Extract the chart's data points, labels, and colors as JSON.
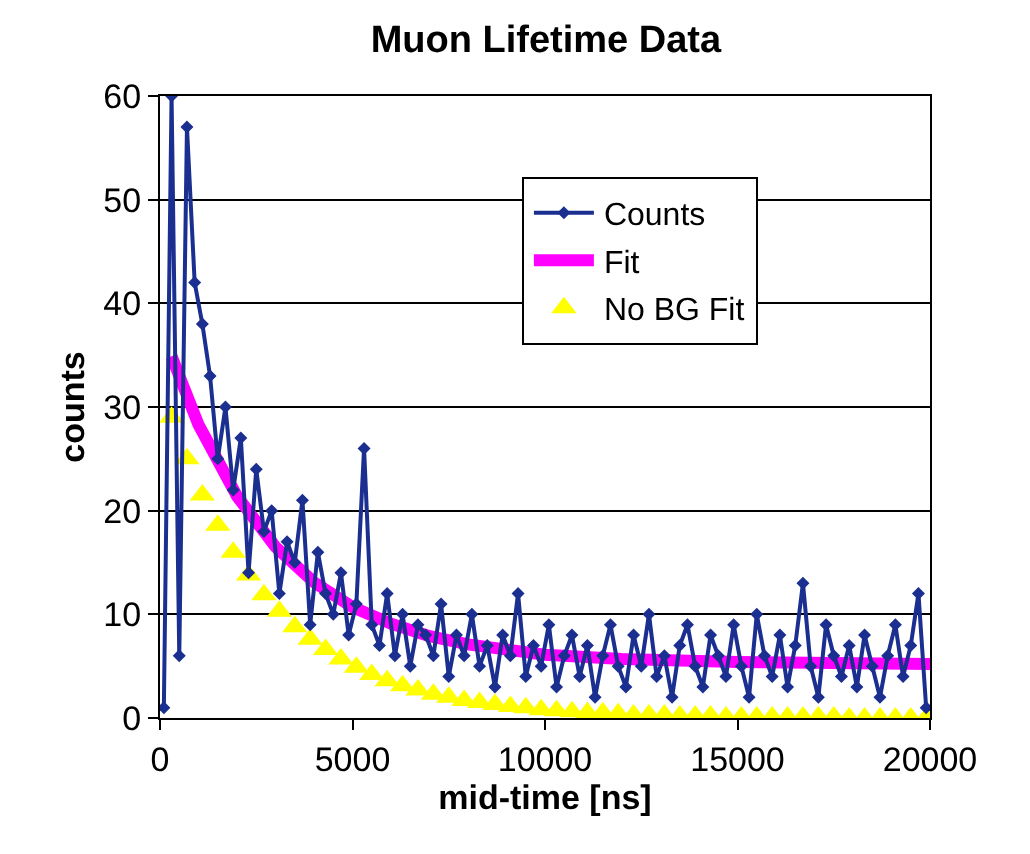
{
  "chart_data": {
    "type": "line",
    "title": "Muon Lifetime Data",
    "xlabel": "mid-time [ns]",
    "ylabel": "counts",
    "xlim": [
      0,
      20000
    ],
    "xticks": [
      0,
      5000,
      10000,
      15000,
      20000
    ],
    "ylim": [
      0,
      60
    ],
    "yticks": [
      0,
      10,
      20,
      30,
      40,
      50,
      60
    ],
    "grid": "y",
    "legend": "top right",
    "series": [
      {
        "name": "Counts",
        "color": "#1a2f8f",
        "marker": "diamond",
        "x": [
          100,
          300,
          500,
          700,
          900,
          1100,
          1300,
          1500,
          1700,
          1900,
          2100,
          2300,
          2500,
          2700,
          2900,
          3100,
          3300,
          3500,
          3700,
          3900,
          4100,
          4300,
          4500,
          4700,
          4900,
          5100,
          5300,
          5500,
          5700,
          5900,
          6100,
          6300,
          6500,
          6700,
          6900,
          7100,
          7300,
          7500,
          7700,
          7900,
          8100,
          8300,
          8500,
          8700,
          8900,
          9100,
          9300,
          9500,
          9700,
          9900,
          10100,
          10300,
          10500,
          10700,
          10900,
          11100,
          11300,
          11500,
          11700,
          11900,
          12100,
          12300,
          12500,
          12700,
          12900,
          13100,
          13300,
          13500,
          13700,
          13900,
          14100,
          14300,
          14500,
          14700,
          14900,
          15100,
          15300,
          15500,
          15700,
          15900,
          16100,
          16300,
          16500,
          16700,
          16900,
          17100,
          17300,
          17500,
          17700,
          17900,
          18100,
          18300,
          18500,
          18700,
          18900,
          19100,
          19300,
          19500,
          19700,
          19900
        ],
        "values": [
          1,
          60,
          6,
          57,
          42,
          38,
          33,
          25,
          30,
          22,
          27,
          14,
          24,
          18,
          20,
          12,
          17,
          15,
          21,
          9,
          16,
          12,
          10,
          14,
          8,
          11,
          26,
          9,
          7,
          12,
          6,
          10,
          5,
          9,
          8,
          6,
          11,
          4,
          8,
          6,
          10,
          5,
          7,
          3,
          8,
          6,
          12,
          4,
          7,
          5,
          9,
          3,
          6,
          8,
          4,
          7,
          2,
          6,
          9,
          5,
          3,
          8,
          5,
          10,
          4,
          6,
          2,
          7,
          9,
          5,
          3,
          8,
          6,
          4,
          9,
          5,
          2,
          10,
          6,
          4,
          8,
          3,
          7,
          13,
          5,
          2,
          9,
          6,
          4,
          7,
          3,
          8,
          5,
          2,
          6,
          9,
          4,
          7,
          12,
          1
        ]
      },
      {
        "name": "Fit",
        "color": "#ff00ff",
        "marker": "none",
        "x": [
          300,
          1000,
          2000,
          3000,
          4000,
          5000,
          6000,
          7000,
          8000,
          10000,
          12000,
          15000,
          20000
        ],
        "values": [
          34.9,
          28.3,
          21.4,
          16.5,
          13.1,
          10.7,
          9.1,
          7.9,
          7.1,
          6.1,
          5.7,
          5.4,
          5.2
        ]
      },
      {
        "name": "No BG Fit",
        "type": "scatter",
        "color": "#ffff00",
        "marker": "triangle",
        "x": [
          300,
          700,
          1100,
          1500,
          1900,
          2300,
          2700,
          3100,
          3500,
          3900,
          4300,
          4700,
          5100,
          5500,
          5900,
          6300,
          6700,
          7100,
          7500,
          7900,
          8300,
          8700,
          9100,
          9500,
          9900,
          10300,
          10700,
          11100,
          11500,
          11900,
          12300,
          12700,
          13100,
          13500,
          13900,
          14300,
          14700,
          15100,
          15500,
          15900,
          16300,
          16700,
          17100,
          17500,
          17900,
          18300,
          18700,
          19100,
          19500,
          19900
        ],
        "values": [
          29,
          25.0,
          21.5,
          18.6,
          16.0,
          13.8,
          11.9,
          10.3,
          8.8,
          7.6,
          6.6,
          5.7,
          4.9,
          4.2,
          3.6,
          3.1,
          2.7,
          2.3,
          2.0,
          1.7,
          1.5,
          1.3,
          1.1,
          1.0,
          0.8,
          0.7,
          0.6,
          0.5,
          0.5,
          0.4,
          0.3,
          0.3,
          0.3,
          0.2,
          0.2,
          0.2,
          0.1,
          0.1,
          0.1,
          0.1,
          0.1,
          0.1,
          0.1,
          0.1,
          0,
          0,
          0,
          0,
          0,
          0
        ]
      }
    ]
  }
}
